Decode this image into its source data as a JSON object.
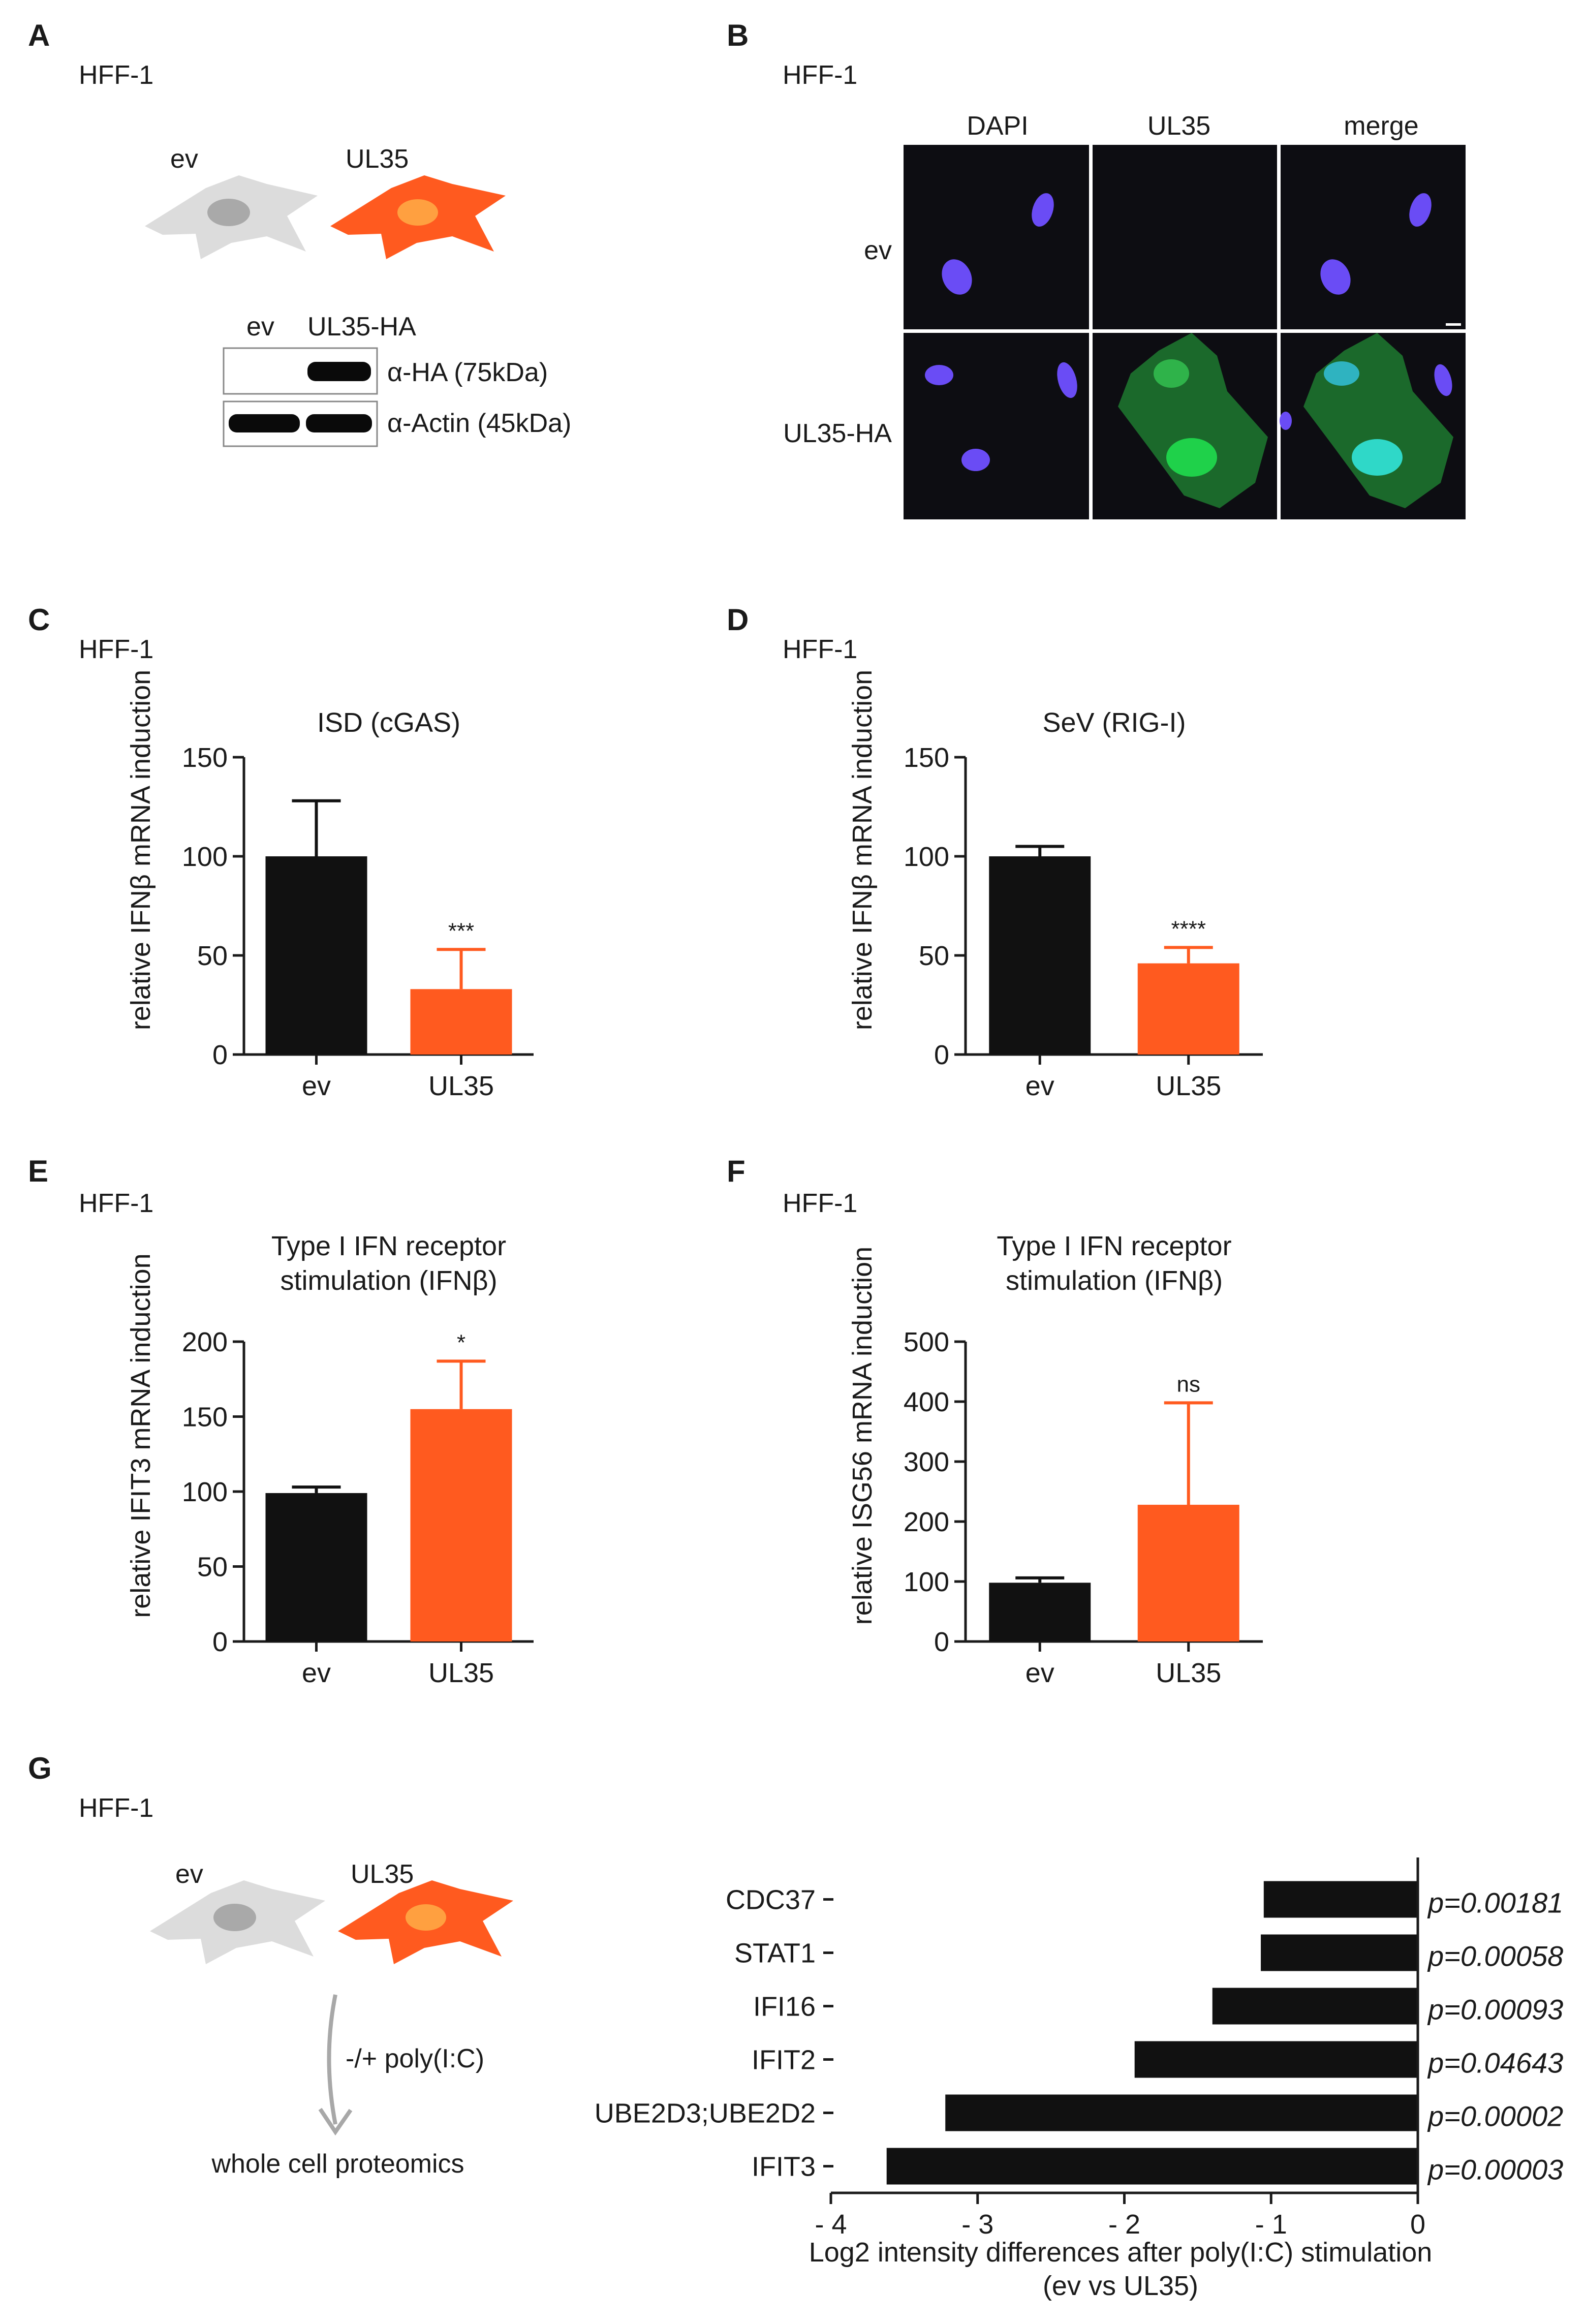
{
  "panels": {
    "A": {
      "letter": "A",
      "cell_line": "HFF-1",
      "cell_labels": [
        "ev",
        "UL35"
      ],
      "blot": {
        "lanes": [
          "ev",
          "UL35-HA"
        ],
        "bands": [
          "α-HA (75kDa)",
          "α-Actin (45kDa)"
        ]
      }
    },
    "B": {
      "letter": "B",
      "cell_line": "HFF-1",
      "columns": [
        "DAPI",
        "UL35",
        "merge"
      ],
      "rows": [
        "ev",
        "UL35-HA"
      ]
    },
    "G": {
      "letter": "G",
      "cell_line": "HFF-1",
      "cell_labels": [
        "ev",
        "UL35"
      ],
      "treatment": "-/+ poly(I:C)",
      "readout": "whole cell proteomics"
    }
  },
  "colors": {
    "ev": "#111111",
    "UL35": "#ff5a1f",
    "cell_gray": "#dcdcdc",
    "cell_gray_nucleus": "#a9a9a9",
    "cell_orange": "#ff5a1f",
    "cell_orange_nucleus": "#ffa040",
    "dapi": "#6a4cf5",
    "gfp": "#1fd14a"
  },
  "chart_data": [
    {
      "id": "C",
      "letter": "C",
      "cell_line": "HFF-1",
      "type": "bar",
      "title": "ISD (cGAS)",
      "ylabel": "relative IFNβ mRNA induction",
      "categories": [
        "ev",
        "UL35"
      ],
      "values": [
        100,
        33
      ],
      "errors": [
        28,
        20
      ],
      "ylim": [
        0,
        150
      ],
      "yticks": [
        0,
        50,
        100,
        150
      ],
      "significance": [
        "",
        "***"
      ]
    },
    {
      "id": "D",
      "letter": "D",
      "cell_line": "HFF-1",
      "type": "bar",
      "title": "SeV (RIG-I)",
      "ylabel": "relative IFNβ mRNA induction",
      "categories": [
        "ev",
        "UL35"
      ],
      "values": [
        100,
        46
      ],
      "errors": [
        5,
        8
      ],
      "ylim": [
        0,
        150
      ],
      "yticks": [
        0,
        50,
        100,
        150
      ],
      "significance": [
        "",
        "****"
      ]
    },
    {
      "id": "E",
      "letter": "E",
      "cell_line": "HFF-1",
      "type": "bar",
      "title": [
        "Type I IFN receptor",
        "stimulation (IFNβ)"
      ],
      "ylabel": "relative IFIT3 mRNA induction",
      "categories": [
        "ev",
        "UL35"
      ],
      "values": [
        99,
        155
      ],
      "errors": [
        4,
        32
      ],
      "ylim": [
        0,
        200
      ],
      "yticks": [
        0,
        50,
        100,
        150,
        200
      ],
      "significance": [
        "",
        "*"
      ]
    },
    {
      "id": "F",
      "letter": "F",
      "cell_line": "HFF-1",
      "type": "bar",
      "title": [
        "Type I IFN receptor",
        "stimulation (IFNβ)"
      ],
      "ylabel": "relative ISG56 mRNA induction",
      "categories": [
        "ev",
        "UL35"
      ],
      "values": [
        98,
        228
      ],
      "errors": [
        8,
        170
      ],
      "ylim": [
        0,
        500
      ],
      "yticks": [
        0,
        100,
        200,
        300,
        400,
        500
      ],
      "significance": [
        "",
        "ns"
      ]
    },
    {
      "id": "G",
      "type": "bar",
      "orientation": "horizontal",
      "categories": [
        "CDC37",
        "STAT1",
        "IFI16",
        "IFIT2",
        "UBE2D3;UBE2D2",
        "IFIT3"
      ],
      "values": [
        -1.05,
        -1.07,
        -1.4,
        -1.93,
        -3.22,
        -3.62
      ],
      "annotations": [
        "p=0.00181",
        "p=0.00058",
        "p=0.00093",
        "p=0.04643",
        "p=0.00002",
        "p=0.00003"
      ],
      "xlim": [
        -4,
        0
      ],
      "xticks": [
        -4,
        -3,
        -2,
        -1,
        0
      ],
      "xtick_labels": [
        "- 4",
        "- 3",
        "- 2",
        "- 1",
        "0"
      ],
      "xlabel": [
        "Log2 intensity differences after poly(I:C) stimulation",
        "(ev vs UL35)"
      ]
    }
  ]
}
